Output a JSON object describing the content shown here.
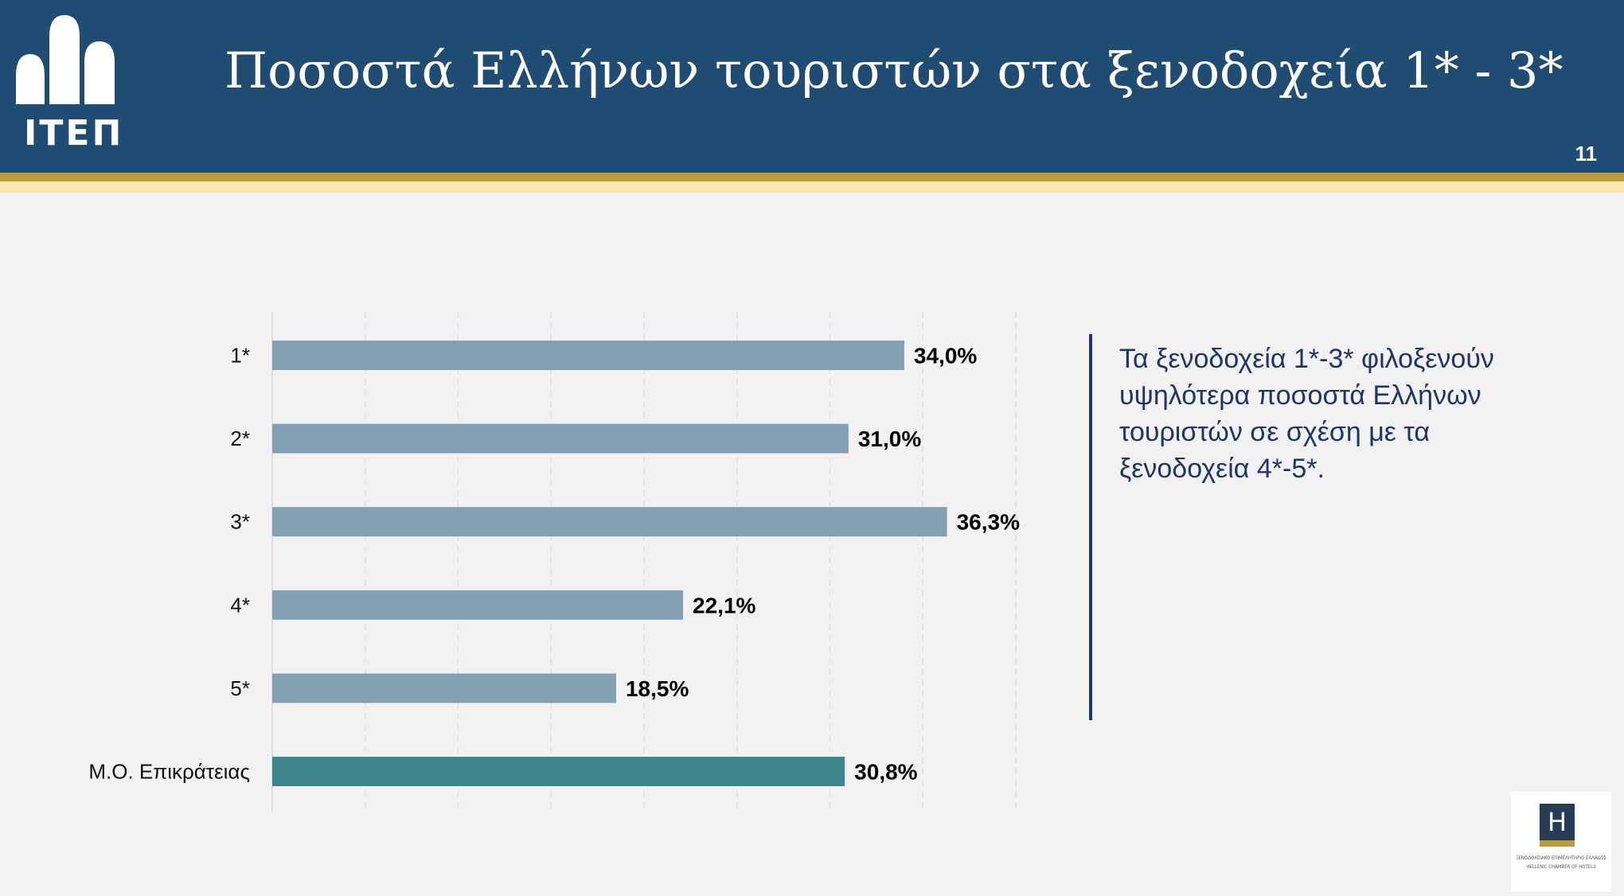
{
  "header": {
    "title": "Ποσοστά Ελλήνων τουριστών στα ξενοδοχεία 1* - 3*",
    "logo_text": "ΙΤΕΠ",
    "page_number": "11"
  },
  "callout": {
    "text": "Τα ξενοδοχεία 1*-3* φιλοξενούν υψηλότερα ποσοστά Ελλήνων τουριστών σε σχέση με τα ξενοδοχεία 4*-5*."
  },
  "footer_logo": {
    "letter": "H",
    "caption_lines": [
      "ΞΕΝΟΔΟΧΕΙΑΚΟ ΕΠΙΜΕΛΗΤΗΡΙΟ ΕΛΛΑΔΟΣ",
      "HELLENIC CHAMBER OF HOTELS"
    ]
  },
  "colors": {
    "header": "#204b72",
    "bar": "#84a0b2",
    "bar_highlight": "#3e868b",
    "callout": "#1f3468",
    "gold": "#b99a3c"
  },
  "chart_data": {
    "type": "bar",
    "orientation": "horizontal",
    "categories": [
      "1*",
      "2*",
      "3*",
      "4*",
      "5*",
      "Μ.Ο. Επικράτειας"
    ],
    "values": [
      34.0,
      31.0,
      36.3,
      22.1,
      18.5,
      30.8
    ],
    "value_labels": [
      "34,0%",
      "31,0%",
      "36,3%",
      "22,1%",
      "18,5%",
      "30,8%"
    ],
    "highlight_category": "Μ.Ο. Επικράτειας",
    "xlim": [
      0,
      40
    ],
    "grid": "vertical dashed",
    "legend": "none"
  }
}
